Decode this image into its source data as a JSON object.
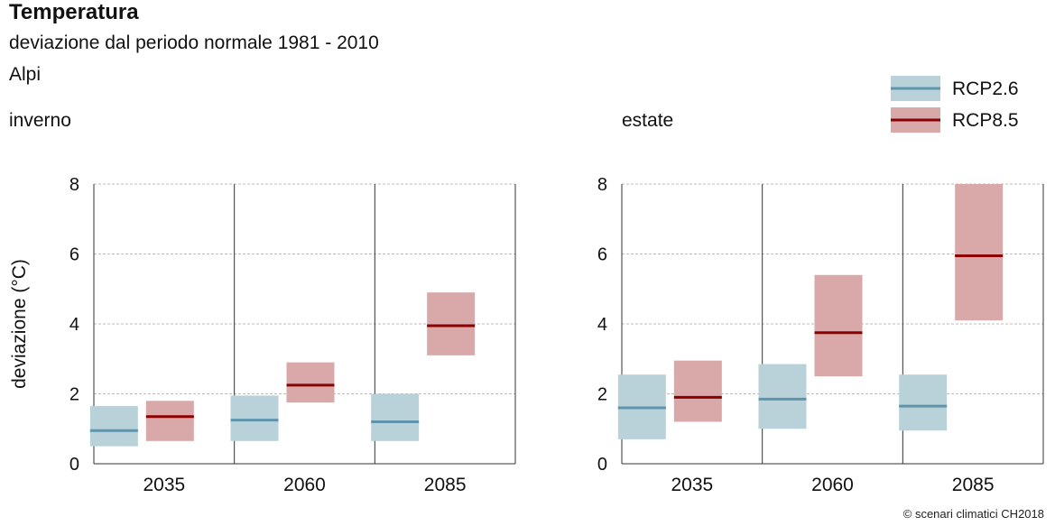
{
  "header": {
    "title": "Temperatura",
    "subtitle": "deviazione dal periodo normale 1981 - 2010",
    "region": "Alpi"
  },
  "credit": "© scenari climatici CH2018",
  "legend": [
    {
      "key": "rcp26",
      "label": "RCP2.6"
    },
    {
      "key": "rcp85",
      "label": "RCP8.5"
    }
  ],
  "colors": {
    "rcp26_box": "#b9d2da",
    "rcp26_line": "#5f95ac",
    "rcp85_box": "#d9a9aa",
    "rcp85_line": "#8b0000",
    "grid": "#bbbbbb",
    "divider": "#333333"
  },
  "chart_data": [
    {
      "type": "box",
      "panel_label": "inverno",
      "ylabel": "deviazione (°C)",
      "ylim": [
        0,
        8
      ],
      "yticks": [
        "0",
        "2",
        "4",
        "6",
        "8"
      ],
      "categories": [
        "2035",
        "2060",
        "2085"
      ],
      "grid": true,
      "series": [
        {
          "name": "RCP2.6",
          "key": "rcp26",
          "low": [
            0.5,
            0.65,
            0.65
          ],
          "median": [
            0.95,
            1.25,
            1.2
          ],
          "high": [
            1.65,
            1.95,
            2.0
          ]
        },
        {
          "name": "RCP8.5",
          "key": "rcp85",
          "low": [
            0.65,
            1.75,
            3.1
          ],
          "median": [
            1.35,
            2.25,
            3.95
          ],
          "high": [
            1.8,
            2.9,
            4.9
          ]
        }
      ]
    },
    {
      "type": "box",
      "panel_label": "estate",
      "ylabel": "",
      "ylim": [
        0,
        8
      ],
      "yticks": [
        "0",
        "2",
        "4",
        "6",
        "8"
      ],
      "categories": [
        "2035",
        "2060",
        "2085"
      ],
      "grid": true,
      "series": [
        {
          "name": "RCP2.6",
          "key": "rcp26",
          "low": [
            0.7,
            1.0,
            0.95
          ],
          "median": [
            1.6,
            1.85,
            1.65
          ],
          "high": [
            2.55,
            2.85,
            2.55
          ]
        },
        {
          "name": "RCP8.5",
          "key": "rcp85",
          "low": [
            1.2,
            2.5,
            4.1
          ],
          "median": [
            1.9,
            3.75,
            5.95
          ],
          "high": [
            2.95,
            5.4,
            8.0
          ]
        }
      ]
    }
  ]
}
